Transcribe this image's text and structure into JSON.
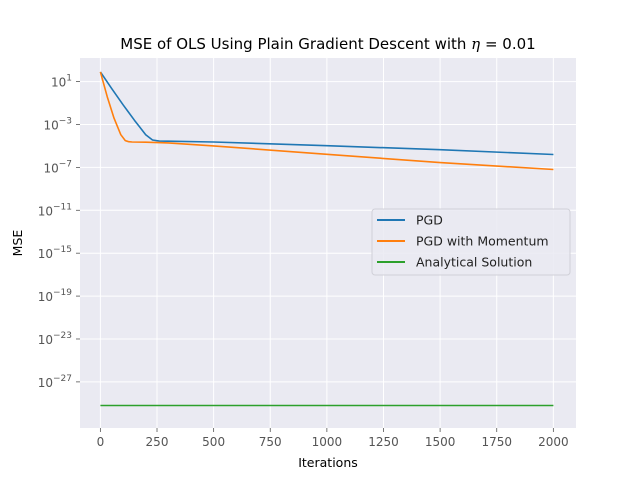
{
  "chart_data": {
    "type": "line",
    "title": "MSE of OLS Using Plain Gradient Descent with η = 0.01",
    "title_parts": {
      "main": "MSE of OLS Using Plain Gradient Descent with ",
      "eta": "η",
      "rest": " = 0.01"
    },
    "xlabel": "Iterations",
    "ylabel": "MSE",
    "xlim": [
      -90,
      2100
    ],
    "ylim_log10": [
      -31.3,
      3.2
    ],
    "yscale": "log",
    "grid": true,
    "legend_position": "center-right",
    "x_ticks": [
      0,
      250,
      500,
      750,
      1000,
      1250,
      1500,
      1750,
      2000
    ],
    "x_tick_labels": [
      "0",
      "250",
      "500",
      "750",
      "1000",
      "1250",
      "1500",
      "1750",
      "2000"
    ],
    "y_ticks_exp": [
      1,
      -3,
      -7,
      -11,
      -15,
      -19,
      -23,
      -27
    ],
    "y_tick_labels": [
      "10",
      "10",
      "10",
      "10",
      "10",
      "10",
      "10",
      "10"
    ],
    "y_tick_exponents": [
      "1",
      "−3",
      "−7",
      "−11",
      "−15",
      "−19",
      "−23",
      "−27"
    ],
    "series": [
      {
        "name": "PGD",
        "color": "#1f77b4",
        "x": [
          0,
          50,
          100,
          150,
          200,
          230,
          260,
          300,
          500,
          1000,
          1500,
          2000
        ],
        "y_log10": [
          1.9,
          0.35,
          -1.15,
          -2.6,
          -3.95,
          -4.45,
          -4.55,
          -4.56,
          -4.63,
          -4.98,
          -5.35,
          -5.8
        ]
      },
      {
        "name": "PGD with Momentum",
        "color": "#ff7f0e",
        "x": [
          0,
          30,
          60,
          90,
          110,
          125,
          140,
          200,
          300,
          500,
          1000,
          1500,
          2000
        ],
        "y_log10": [
          1.9,
          -0.4,
          -2.4,
          -3.95,
          -4.5,
          -4.6,
          -4.63,
          -4.65,
          -4.72,
          -5.0,
          -5.78,
          -6.55,
          -7.2
        ]
      },
      {
        "name": "Analytical Solution",
        "color": "#2ca02c",
        "x": [
          0,
          2000
        ],
        "y_log10": [
          -29.2,
          -29.2
        ]
      }
    ]
  }
}
